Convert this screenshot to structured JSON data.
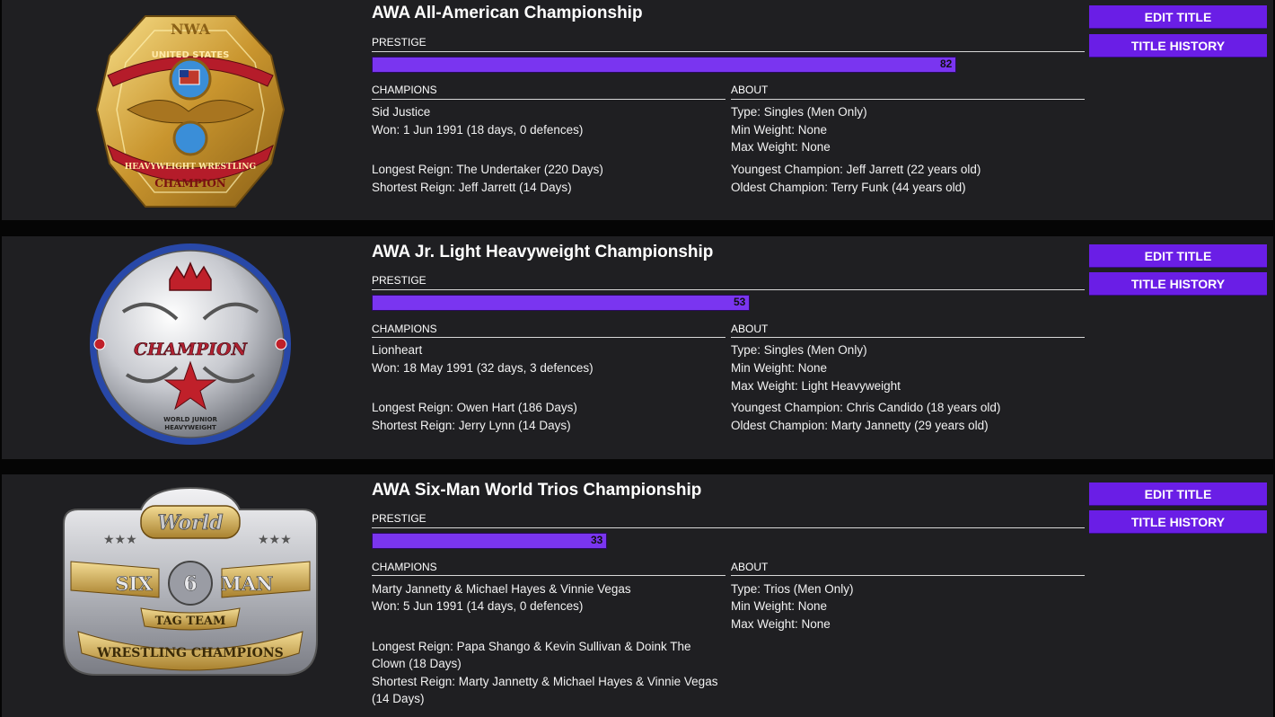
{
  "labels": {
    "prestige": "PRESTIGE",
    "champions": "CHAMPIONS",
    "about": "ABOUT"
  },
  "buttons": {
    "edit": "EDIT TITLE",
    "history": "TITLE HISTORY"
  },
  "accent_color": "#6a1ee6",
  "titles": [
    {
      "name": "AWA All-American Championship",
      "prestige": 82,
      "prestige_label": "82",
      "belt_icon": "gold-belt-icon",
      "champion": "Sid Justice",
      "won": "Won: 1 Jun 1991 (18 days, 0 defences)",
      "longest": "Longest Reign: The Undertaker (220 Days)",
      "shortest": "Shortest Reign: Jeff Jarrett (14 Days)",
      "type": "Type: Singles (Men Only)",
      "min_weight": "Min Weight: None",
      "max_weight": "Max Weight: None",
      "youngest": "Youngest Champion: Jeff Jarrett (22 years old)",
      "oldest": "Oldest Champion: Terry Funk (44 years old)",
      "belt_text": [
        "NWA",
        "UNITED STATES",
        "HEAVYWEIGHT WRESTLING",
        "CHAMPION"
      ]
    },
    {
      "name": "AWA Jr. Light Heavyweight Championship",
      "prestige": 53,
      "prestige_label": "53",
      "belt_icon": "silver-round-belt-icon",
      "champion": "Lionheart",
      "won": "Won: 18 May 1991 (32 days, 3 defences)",
      "longest": "Longest Reign: Owen Hart (186 Days)",
      "shortest": "Shortest Reign: Jerry Lynn (14 Days)",
      "type": "Type: Singles (Men Only)",
      "min_weight": "Min Weight: None",
      "max_weight": "Max Weight: Light Heavyweight",
      "youngest": "Youngest Champion: Chris Candido (18 years old)",
      "oldest": "Oldest Champion: Marty Jannetty (29 years old)",
      "belt_text": [
        "CHAMPION",
        "WORLD JUNIOR",
        "HEAVYWEIGHT"
      ]
    },
    {
      "name": "AWA Six-Man World Trios Championship",
      "prestige": 33,
      "prestige_label": "33",
      "belt_icon": "silver-gold-buckle-belt-icon",
      "champion": "Marty Jannetty & Michael Hayes & Vinnie Vegas",
      "won": "Won: 5 Jun 1991 (14 days, 0 defences)",
      "longest": "Longest Reign: Papa Shango & Kevin Sullivan & Doink The Clown (18 Days)",
      "shortest": "Shortest Reign: Marty Jannetty & Michael Hayes & Vinnie Vegas (14 Days)",
      "type": "Type: Trios (Men Only)",
      "min_weight": "Min Weight: None",
      "max_weight": "Max Weight: None",
      "youngest": "",
      "oldest": "",
      "belt_text": [
        "World",
        "SIX",
        "6",
        "MAN",
        "TAG TEAM",
        "WRESTLING CHAMPIONS"
      ]
    }
  ]
}
